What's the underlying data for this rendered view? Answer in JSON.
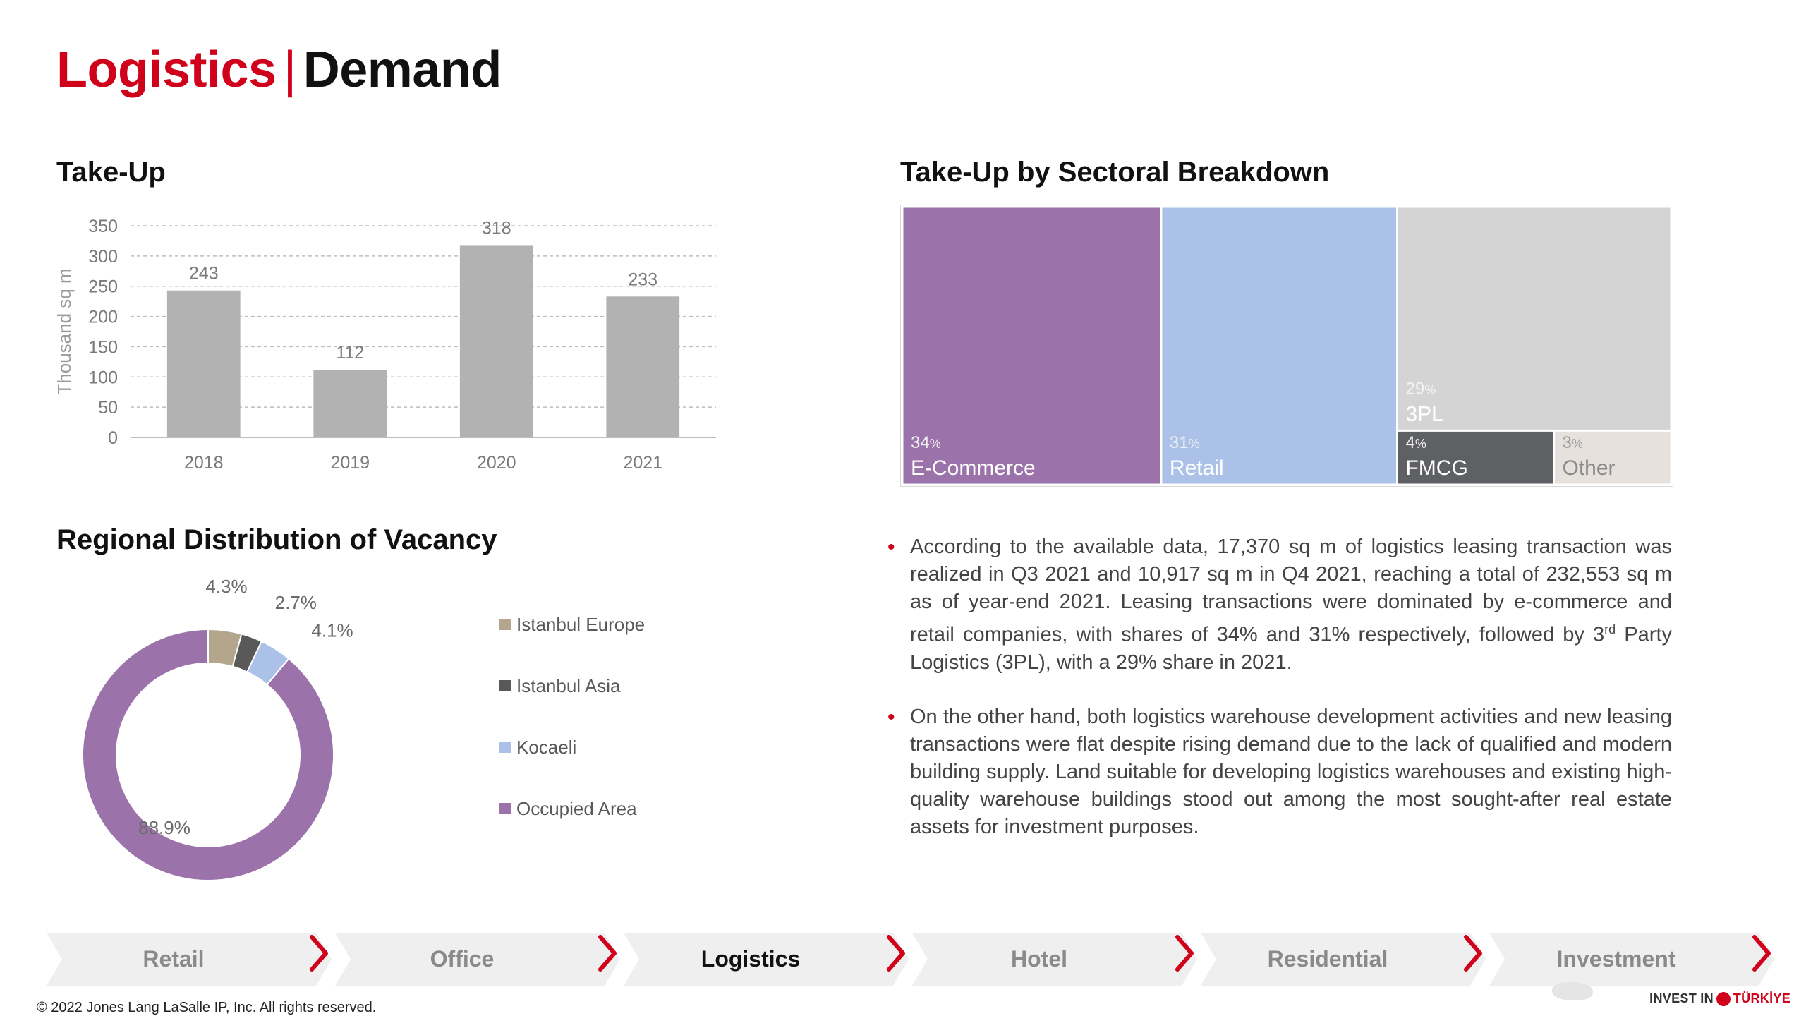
{
  "title": {
    "part1": "Logistics",
    "separator": "|",
    "part2": "Demand"
  },
  "sections": {
    "takeup": "Take-Up",
    "sectoral": "Take-Up by Sectoral Breakdown",
    "vacancy": "Regional Distribution of Vacancy"
  },
  "chart_data": [
    {
      "type": "bar",
      "title": "Take-Up",
      "ylabel": "Thousand sq m",
      "categories": [
        "2018",
        "2019",
        "2020",
        "2021"
      ],
      "values": [
        243,
        112,
        318,
        233
      ],
      "ylim": [
        0,
        350
      ],
      "yticks": [
        0,
        50,
        100,
        150,
        200,
        250,
        300,
        350
      ],
      "grid": true,
      "bar_color": "#b2b2b2"
    },
    {
      "type": "treemap",
      "title": "Take-Up by Sectoral Breakdown",
      "items": [
        {
          "label": "E-Commerce",
          "pct_num": "34",
          "pct_sym": "%",
          "value": 34,
          "color": "#9b72a9"
        },
        {
          "label": "Retail",
          "pct_num": "31",
          "pct_sym": "%",
          "value": 31,
          "color": "#abc1e8"
        },
        {
          "label": "3PL",
          "pct_num": "29",
          "pct_sym": "%",
          "value": 29,
          "color": "#d4d4d4"
        },
        {
          "label": "FMCG",
          "pct_num": "4",
          "pct_sym": "%",
          "value": 4,
          "color": "#5f6063"
        },
        {
          "label": "Other",
          "pct_num": "3",
          "pct_sym": "%",
          "value": 3,
          "color": "#e6e1dc"
        }
      ]
    },
    {
      "type": "pie",
      "title": "Regional Distribution of Vacancy",
      "donut": true,
      "slices": [
        {
          "name": "Istanbul Europe",
          "value": 4.3,
          "label": "4.3%",
          "color": "#b3a68d"
        },
        {
          "name": "Istanbul Asia",
          "value": 2.7,
          "label": "2.7%",
          "color": "#595959"
        },
        {
          "name": "Kocaeli",
          "value": 4.1,
          "label": "4.1%",
          "color": "#abc1e8"
        },
        {
          "name": "Occupied Area",
          "value": 88.9,
          "label": "88.9%",
          "color": "#9b72a9"
        }
      ],
      "legend_placement": "right"
    }
  ],
  "bullets": [
    {
      "pre": "According to the available data, 17,370 sq m of logistics leasing transaction was realized in Q3 2021 and 10,917 sq m in Q4 2021, reaching a total of 232,553 sq m as of year-end 2021. Leasing transactions were dominated by e-commerce and retail companies, with shares of 34% and 31% respectively, followed by 3",
      "sup": "rd",
      "post": " Party Logistics (3PL), with a 29% share in 2021."
    },
    {
      "pre": "On the other hand, both logistics warehouse development activities and new leasing transactions were flat despite rising demand due to the lack of qualified and modern building supply. Land suitable for developing logistics warehouses and existing high-quality warehouse buildings stood out among the most sought-after real estate assets for investment purposes.",
      "sup": "",
      "post": ""
    }
  ],
  "bullet_marker": "•",
  "nav": {
    "items": [
      "Retail",
      "Office",
      "Logistics",
      "Hotel",
      "Residential",
      "Investment"
    ],
    "active": "Logistics",
    "chevron_color": "#d0021b"
  },
  "footer": "© 2022 Jones Lang LaSalle IP, Inc. All rights reserved.",
  "brand": {
    "part1": "INVEST IN",
    "part2": "TÜRKİYE"
  },
  "colors": {
    "accent": "#d0021b"
  }
}
